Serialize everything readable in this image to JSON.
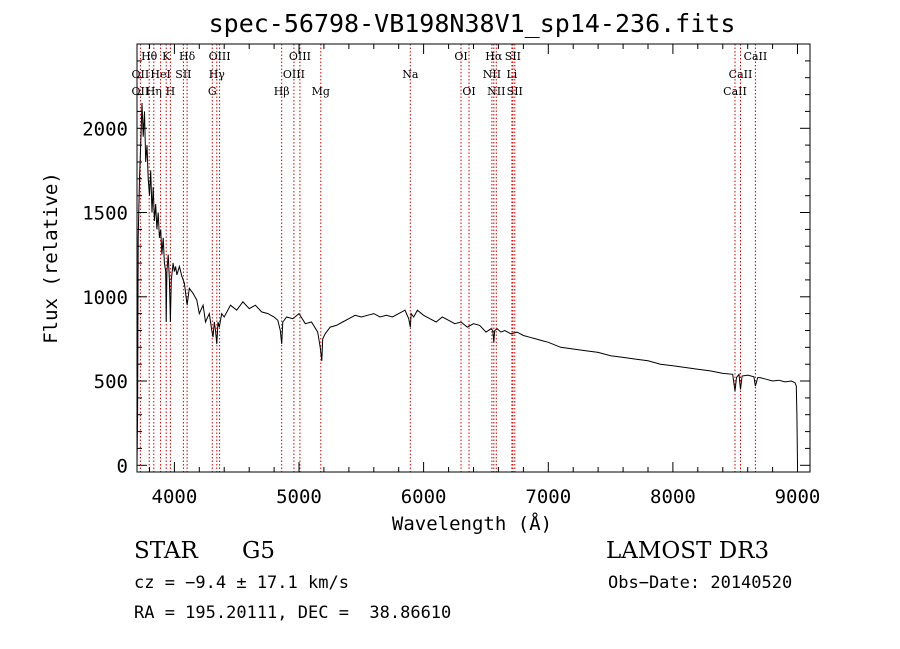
{
  "chart_data": {
    "type": "line",
    "title": "spec-56798-VB198N38V1_sp14-236.fits",
    "xlabel": "Wavelength (Å)",
    "ylabel": "Flux (relative)",
    "xlim": [
      3700,
      9100
    ],
    "ylim": [
      -40,
      2500
    ],
    "xticks": [
      4000,
      5000,
      6000,
      7000,
      8000,
      9000
    ],
    "yticks": [
      0,
      500,
      1000,
      1500,
      2000
    ],
    "grid": false,
    "series": [
      {
        "name": "flux",
        "x": [
          3700,
          3705,
          3710,
          3720,
          3730,
          3740,
          3750,
          3760,
          3770,
          3780,
          3790,
          3800,
          3810,
          3820,
          3830,
          3840,
          3850,
          3860,
          3870,
          3880,
          3890,
          3900,
          3910,
          3920,
          3930,
          3934,
          3940,
          3950,
          3960,
          3968,
          3975,
          3990,
          4000,
          4010,
          4020,
          4040,
          4060,
          4080,
          4102,
          4120,
          4150,
          4180,
          4200,
          4230,
          4250,
          4280,
          4300,
          4310,
          4320,
          4330,
          4340,
          4350,
          4360,
          4380,
          4400,
          4450,
          4500,
          4550,
          4600,
          4650,
          4700,
          4750,
          4800,
          4830,
          4850,
          4861,
          4870,
          4900,
          4950,
          5000,
          5050,
          5100,
          5150,
          5170,
          5183,
          5190,
          5210,
          5250,
          5300,
          5350,
          5400,
          5450,
          5500,
          5550,
          5600,
          5650,
          5700,
          5750,
          5800,
          5850,
          5880,
          5893,
          5900,
          5920,
          5950,
          6000,
          6050,
          6100,
          6150,
          6200,
          6250,
          6300,
          6350,
          6400,
          6450,
          6500,
          6540,
          6555,
          6563,
          6570,
          6590,
          6620,
          6650,
          6700,
          6750,
          6800,
          6850,
          6900,
          6950,
          7000,
          7100,
          7200,
          7300,
          7400,
          7500,
          7600,
          7700,
          7800,
          7900,
          8000,
          8100,
          8200,
          8300,
          8400,
          8480,
          8498,
          8510,
          8530,
          8542,
          8555,
          8600,
          8650,
          8662,
          8680,
          8700,
          8750,
          8800,
          8850,
          8900,
          8950,
          8980,
          8990,
          8995,
          9000
        ],
        "y": [
          0,
          300,
          1350,
          1700,
          1900,
          2150,
          1950,
          2100,
          1800,
          1900,
          1700,
          1600,
          1750,
          1500,
          1650,
          1450,
          1550,
          1400,
          1500,
          1350,
          1400,
          1250,
          1350,
          1200,
          1150,
          850,
          1150,
          1250,
          1100,
          850,
          1100,
          1200,
          1150,
          1180,
          1130,
          1180,
          1120,
          1080,
          950,
          1050,
          1020,
          980,
          900,
          950,
          850,
          900,
          800,
          760,
          850,
          800,
          720,
          850,
          820,
          900,
          880,
          950,
          920,
          970,
          930,
          950,
          910,
          900,
          880,
          860,
          800,
          720,
          850,
          880,
          870,
          900,
          840,
          850,
          790,
          700,
          620,
          750,
          780,
          820,
          830,
          850,
          870,
          890,
          880,
          890,
          900,
          880,
          890,
          880,
          900,
          920,
          870,
          820,
          900,
          880,
          920,
          890,
          870,
          850,
          880,
          860,
          840,
          850,
          820,
          840,
          830,
          790,
          810,
          800,
          730,
          800,
          810,
          790,
          800,
          780,
          790,
          770,
          760,
          750,
          740,
          730,
          700,
          690,
          680,
          670,
          650,
          640,
          630,
          620,
          600,
          590,
          580,
          570,
          560,
          545,
          540,
          440,
          520,
          540,
          450,
          530,
          535,
          525,
          470,
          520,
          520,
          510,
          500,
          505,
          495,
          500,
          490,
          470,
          300,
          0
        ]
      }
    ],
    "line_labels": [
      {
        "name": "OII",
        "x": 3727,
        "row": 2,
        "row2": 3
      },
      {
        "name": "Hθ",
        "x": 3798,
        "row": 1
      },
      {
        "name": "Hη",
        "x": 3835,
        "row": 3
      },
      {
        "name": "HeI",
        "x": 3889,
        "row": 2
      },
      {
        "name": "K",
        "x": 3934,
        "row": 1
      },
      {
        "name": "H",
        "x": 3968,
        "row": 3
      },
      {
        "name": "SII",
        "x": 4072,
        "row": 2
      },
      {
        "name": "Hδ",
        "x": 4102,
        "row": 1
      },
      {
        "name": "OIII",
        "x": 4363,
        "row": 1
      },
      {
        "name": "Hγ",
        "x": 4340,
        "row": 2
      },
      {
        "name": "G",
        "x": 4304,
        "row": 3
      },
      {
        "name": "Hβ",
        "x": 4861,
        "row": 3
      },
      {
        "name": "OIII",
        "x": 4959,
        "row": 2
      },
      {
        "name": "OIII",
        "x": 5007,
        "row": 1
      },
      {
        "name": "Mg",
        "x": 5175,
        "row": 3
      },
      {
        "name": "Na",
        "x": 5893,
        "row": 2
      },
      {
        "name": "OI",
        "x": 6300,
        "row": 1
      },
      {
        "name": "OI",
        "x": 6364,
        "row": 3
      },
      {
        "name": "Hα",
        "x": 6563,
        "row": 1
      },
      {
        "name": "NII",
        "x": 6548,
        "row": 2
      },
      {
        "name": "NII",
        "x": 6583,
        "row": 3
      },
      {
        "name": "SII",
        "x": 6716,
        "row": 1
      },
      {
        "name": "Li",
        "x": 6708,
        "row": 2
      },
      {
        "name": "SII",
        "x": 6731,
        "row": 3
      },
      {
        "name": "CaII",
        "x": 8662,
        "row": 1
      },
      {
        "name": "CaII",
        "x": 8542,
        "row": 2
      },
      {
        "name": "CaII",
        "x": 8498,
        "row": 3
      }
    ],
    "line_marker_x": [
      3727,
      3798,
      3835,
      3889,
      3934,
      3968,
      4072,
      4102,
      4304,
      4340,
      4363,
      4861,
      4959,
      5007,
      5175,
      5893,
      6300,
      6364,
      6548,
      6563,
      6583,
      6708,
      6716,
      6731,
      8498,
      8542,
      8662
    ],
    "colors": {
      "spectrum": "#000000",
      "markers": "#cc0000",
      "axes": "#000000"
    }
  },
  "info": {
    "class_label": "STAR",
    "subclass": "G5",
    "survey": "LAMOST DR3",
    "cz": "cz = −9.4 ± 17.1 km/s",
    "obs_date": "Obs−Date: 20140520",
    "coords": "RA = 195.20111, DEC =  38.86610"
  }
}
